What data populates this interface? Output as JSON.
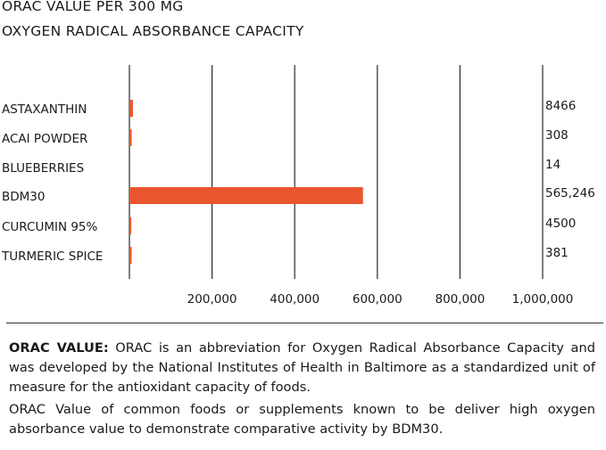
{
  "title_line1": "ORAC VALUE PER 300 MG",
  "title_line2": "OXYGEN RADICAL ABSORBANCE CAPACITY",
  "chart_data": {
    "type": "bar",
    "orientation": "horizontal",
    "title": "ORAC VALUE PER 300 MG — OXYGEN RADICAL ABSORBANCE CAPACITY",
    "categories": [
      "ASTAXANTHIN",
      "ACAI POWDER",
      "BLUEBERRIES",
      "BDM30",
      "CURCUMIN 95%",
      "TURMERIC SPICE"
    ],
    "values": [
      8466,
      308,
      14,
      565246,
      4500,
      381
    ],
    "value_labels": [
      "8466",
      "308",
      "14",
      "565,246",
      "4500",
      "381"
    ],
    "xticks": [
      200000,
      400000,
      600000,
      800000,
      1000000
    ],
    "xtick_labels": [
      "200,000",
      "400,000",
      "600,000",
      "800,000",
      "1,000,000"
    ],
    "xlim": [
      0,
      1000000
    ],
    "grid": true,
    "bar_color": "#e8562e"
  },
  "description": {
    "label": "ORAC VALUE:",
    "text": " ORAC is an abbreviation for Oxygen Radical Absorbance Capacity and was developed by the National Institutes of Health in Baltimore as a standardized unit of measure for the antioxidant capacity of foods.",
    "text2": "ORAC Value of common foods or supplements known to be deliver high oxygen absorbance value to demonstrate comparative activity by BDM30."
  }
}
